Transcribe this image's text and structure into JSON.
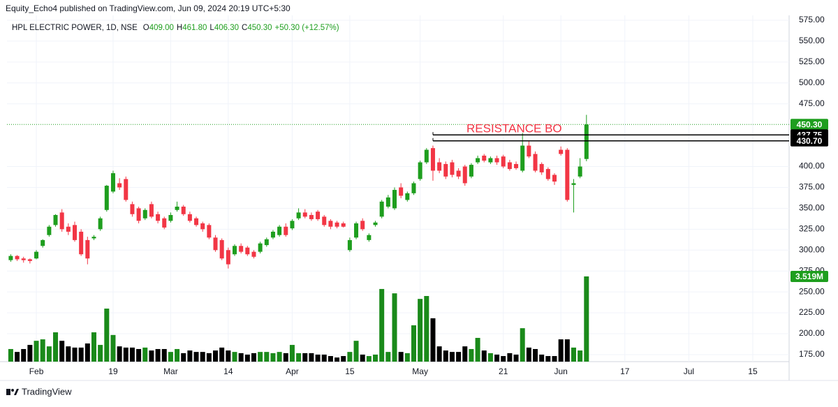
{
  "header": {
    "publisher": "Equity_Echo4 published on TradingView.com, Jun 09, 2024 20:19 UTC+5:30"
  },
  "footer": {
    "brand": "TradingView"
  },
  "chart_data": {
    "type": "candlestick",
    "legend": {
      "symbol": "HPL ELECTRIC POWER, 1D, NSE",
      "items": [
        {
          "key": "O",
          "value": "409.00"
        },
        {
          "key": "H",
          "value": "461.80"
        },
        {
          "key": "L",
          "value": "406.30"
        },
        {
          "key": "C",
          "value": "450.30"
        }
      ],
      "change": "+50.30 (+12.57%)"
    },
    "annotation": "RESISTANCE BO",
    "up_color": "#1e9e1e",
    "down_color": "#f23645",
    "volume_up_color": "#1a8a1a",
    "volume_down_color": "#000000",
    "ylim": [
      166.6,
      580.8
    ],
    "yticks": [
      {
        "value": 175,
        "label": "175.00"
      },
      {
        "value": 200,
        "label": "200.00"
      },
      {
        "value": 225,
        "label": "225.00"
      },
      {
        "value": 250,
        "label": "250.00"
      },
      {
        "value": 275,
        "label": "275.00"
      },
      {
        "value": 300,
        "label": "300.00"
      },
      {
        "value": 325,
        "label": "325.00"
      },
      {
        "value": 350,
        "label": "350.00"
      },
      {
        "value": 375,
        "label": "375.00"
      },
      {
        "value": 400,
        "label": "400.00"
      },
      {
        "value": 475,
        "label": "475.00"
      },
      {
        "value": 500,
        "label": "500.00"
      },
      {
        "value": 525,
        "label": "525.00"
      },
      {
        "value": 550,
        "label": "550.00"
      },
      {
        "value": 575,
        "label": "575.00"
      }
    ],
    "volume_lim": [
      0,
      14.3
    ],
    "grid": true,
    "price_lines": [
      {
        "value": 450.3,
        "label": "450.30",
        "color": "#1e9e1e",
        "style": "dotted"
      },
      {
        "value": 437.75,
        "label": "437.75",
        "color": "#000000",
        "style": "solid"
      },
      {
        "value": 430.7,
        "label": "430.70",
        "color": "#000000",
        "style": "solid"
      }
    ],
    "volume_label": {
      "value": 3.519,
      "label": "3.519M",
      "color": "#1e9e1e"
    },
    "categories": [
      null,
      null,
      null,
      null,
      "Feb",
      null,
      null,
      null,
      null,
      null,
      null,
      null,
      null,
      null,
      null,
      null,
      "19",
      null,
      null,
      null,
      null,
      null,
      null,
      null,
      null,
      "Mar",
      null,
      null,
      null,
      null,
      null,
      null,
      null,
      null,
      "14",
      null,
      null,
      null,
      null,
      null,
      null,
      null,
      null,
      null,
      "Apr",
      null,
      null,
      null,
      null,
      null,
      null,
      null,
      null,
      "15",
      null,
      null,
      null,
      null,
      null,
      null,
      null,
      null,
      null,
      null,
      "May",
      null,
      null,
      null,
      null,
      null,
      null,
      null,
      null,
      null,
      null,
      null,
      null,
      "21",
      null,
      null,
      null,
      null,
      null,
      null,
      null,
      null,
      "Jun",
      null,
      null,
      null,
      null,
      null,
      null,
      null,
      null,
      null,
      "17",
      null,
      null,
      null,
      null,
      null,
      null,
      null,
      null,
      null,
      "Jul",
      null,
      null,
      null,
      null,
      null,
      null,
      null,
      null,
      null,
      "15"
    ],
    "open": [
      288,
      293,
      290,
      289,
      290,
      305,
      318,
      330,
      345,
      328,
      330,
      322,
      312,
      314,
      325,
      348,
      370,
      380,
      385,
      355,
      350,
      338,
      355,
      343,
      338,
      335,
      348,
      352,
      343,
      338,
      332,
      330,
      315,
      312,
      300,
      295,
      305,
      303,
      298,
      298,
      306,
      315,
      318,
      328,
      326,
      338,
      345,
      342,
      346,
      340,
      335,
      333,
      332,
      300,
      315,
      335,
      312,
      330,
      340,
      352,
      350,
      375,
      360,
      368,
      385,
      405,
      422,
      405,
      403,
      405,
      395,
      400,
      388,
      405,
      413,
      405,
      410,
      412,
      405,
      403,
      395,
      425,
      415,
      403,
      397,
      390,
      420,
      420,
      378,
      388,
      409,
      null,
      null,
      null,
      null,
      null,
      null,
      null,
      null,
      null,
      null,
      null,
      null,
      null,
      null,
      null,
      null,
      null,
      null,
      null,
      null,
      null,
      null,
      null,
      null,
      null,
      null
    ],
    "high": [
      295,
      294,
      292,
      290,
      300,
      313,
      330,
      343,
      349,
      332,
      334,
      325,
      316,
      318,
      340,
      378,
      395,
      386,
      388,
      358,
      352,
      350,
      358,
      346,
      340,
      345,
      358,
      354,
      346,
      340,
      334,
      332,
      318,
      314,
      303,
      307,
      308,
      305,
      300,
      310,
      315,
      324,
      330,
      332,
      337,
      350,
      349,
      345,
      348,
      342,
      337,
      335,
      334,
      315,
      334,
      338,
      320,
      335,
      360,
      366,
      375,
      380,
      370,
      382,
      407,
      422,
      425,
      410,
      406,
      408,
      398,
      402,
      404,
      413,
      415,
      412,
      413,
      414,
      408,
      406,
      440,
      430,
      418,
      405,
      399,
      392,
      424,
      422,
      385,
      410,
      461.8,
      null,
      null,
      null,
      null,
      null,
      null,
      null,
      null,
      null,
      null,
      null,
      null,
      null,
      null,
      null,
      null,
      null,
      null,
      null,
      null,
      null,
      null,
      null,
      null,
      null,
      null
    ],
    "low": [
      286,
      287,
      285,
      284,
      289,
      303,
      316,
      328,
      322,
      318,
      310,
      293,
      283,
      312,
      323,
      346,
      368,
      372,
      358,
      340,
      332,
      336,
      338,
      332,
      325,
      333,
      346,
      341,
      333,
      328,
      322,
      313,
      298,
      288,
      278,
      293,
      296,
      293,
      290,
      296,
      304,
      313,
      316,
      316,
      324,
      336,
      338,
      335,
      335,
      328,
      325,
      326,
      327,
      298,
      313,
      323,
      310,
      328,
      338,
      350,
      348,
      362,
      358,
      366,
      383,
      403,
      383,
      392,
      385,
      387,
      385,
      377,
      386,
      403,
      405,
      403,
      402,
      398,
      395,
      396,
      393,
      410,
      393,
      390,
      383,
      378,
      413,
      358,
      345,
      386,
      406.3,
      null,
      null,
      null,
      null,
      null,
      null,
      null,
      null,
      null,
      null,
      null,
      null,
      null,
      null,
      null,
      null,
      null,
      null,
      null,
      null,
      null,
      null,
      null,
      null,
      null,
      null
    ],
    "close": [
      293,
      289,
      288,
      287,
      298,
      312,
      328,
      342,
      325,
      322,
      312,
      295,
      290,
      316,
      338,
      377,
      392,
      375,
      360,
      343,
      335,
      348,
      340,
      335,
      327,
      342,
      352,
      343,
      335,
      330,
      325,
      315,
      300,
      290,
      283,
      305,
      298,
      295,
      292,
      308,
      313,
      322,
      328,
      318,
      335,
      345,
      340,
      337,
      337,
      330,
      328,
      328,
      328,
      312,
      332,
      325,
      318,
      333,
      358,
      363,
      372,
      365,
      368,
      380,
      405,
      420,
      395,
      395,
      388,
      390,
      388,
      380,
      402,
      410,
      407,
      410,
      405,
      400,
      397,
      398,
      425,
      412,
      395,
      393,
      385,
      382,
      415,
      360,
      380,
      400,
      450.3,
      null,
      null,
      null,
      null,
      null,
      null,
      null,
      null,
      null,
      null,
      null,
      null,
      null,
      null,
      null,
      null,
      null,
      null,
      null,
      null,
      null,
      null,
      null,
      null,
      null,
      null
    ],
    "volume": [
      0.52,
      0.4,
      0.52,
      0.69,
      0.86,
      0.92,
      0.63,
      1.21,
      0.86,
      0.63,
      0.58,
      0.58,
      0.75,
      1.21,
      0.69,
      2.19,
      1.1,
      0.63,
      0.58,
      0.58,
      0.52,
      0.58,
      0.46,
      0.52,
      0.52,
      0.4,
      0.52,
      0.35,
      0.46,
      0.4,
      0.4,
      0.35,
      0.46,
      0.58,
      0.46,
      0.4,
      0.35,
      0.29,
      0.35,
      0.4,
      0.4,
      0.35,
      0.4,
      0.35,
      0.69,
      0.35,
      0.35,
      0.35,
      0.29,
      0.29,
      0.23,
      0.17,
      0.23,
      0.4,
      0.86,
      0.29,
      0.23,
      0.29,
      3.0,
      0.4,
      2.82,
      0.4,
      0.35,
      1.5,
      2.59,
      2.71,
      1.79,
      0.63,
      0.46,
      0.4,
      0.4,
      0.63,
      0.52,
      0.98,
      0.46,
      0.35,
      0.29,
      0.23,
      0.35,
      0.29,
      1.38,
      0.58,
      0.52,
      0.29,
      0.23,
      0.23,
      0.92,
      0.92,
      0.58,
      0.46,
      3.519,
      null,
      null,
      null,
      null,
      null,
      null,
      null,
      null,
      null,
      null,
      null,
      null,
      null,
      null,
      null,
      null,
      null,
      null,
      null,
      null,
      null,
      null,
      null,
      null,
      null,
      null
    ]
  }
}
